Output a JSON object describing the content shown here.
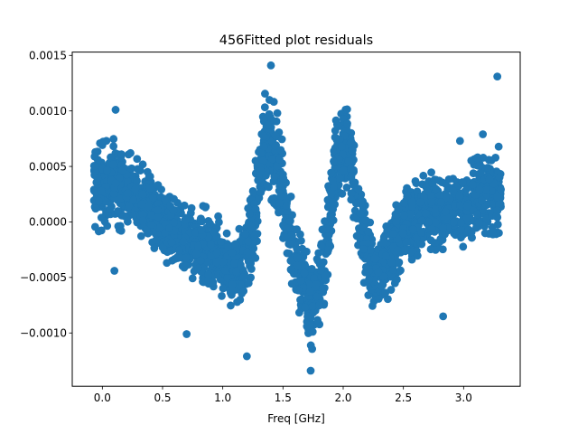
{
  "chart_data": {
    "type": "scatter",
    "title": "456Fitted plot residuals",
    "xlabel": "Freq [GHz]",
    "ylabel": "",
    "xlim": [
      -0.25,
      3.47
    ],
    "ylim": [
      -0.00148,
      0.00153
    ],
    "grid": false,
    "legend": "none",
    "marker_color": "#1f77b4",
    "x_ticks": [
      {
        "value": 0.0,
        "label": "0.0"
      },
      {
        "value": 0.5,
        "label": "0.5"
      },
      {
        "value": 1.0,
        "label": "1.0"
      },
      {
        "value": 1.5,
        "label": "1.5"
      },
      {
        "value": 2.0,
        "label": "2.0"
      },
      {
        "value": 2.5,
        "label": "2.5"
      },
      {
        "value": 3.0,
        "label": "3.0"
      }
    ],
    "y_ticks": [
      {
        "value": -0.001,
        "label": "−0.0010"
      },
      {
        "value": -0.0005,
        "label": "−0.0005"
      },
      {
        "value": 0.0,
        "label": "0.0000"
      },
      {
        "value": 0.0005,
        "label": "0.0005"
      },
      {
        "value": 0.001,
        "label": "0.0010"
      },
      {
        "value": 0.0015,
        "label": "0.0015"
      }
    ],
    "trend": {
      "x": [
        -0.08,
        0.1,
        0.3,
        0.5,
        0.7,
        0.9,
        1.1,
        1.25,
        1.35,
        1.45,
        1.55,
        1.65,
        1.75,
        1.85,
        1.95,
        2.05,
        2.15,
        2.25,
        2.35,
        2.5,
        2.7,
        2.9,
        3.1,
        3.3
      ],
      "y": [
        0.0003,
        0.00035,
        0.0002,
        0.0,
        -0.00015,
        -0.00022,
        -0.00045,
        -5e-05,
        0.0007,
        0.0006,
        -0.0001,
        -0.0005,
        -0.0008,
        -0.0003,
        0.0006,
        0.0007,
        -0.0001,
        -0.00045,
        -0.0004,
        -5e-05,
        0.0001,
        0.0001,
        0.0002,
        0.0003
      ],
      "spread": [
        0.00028,
        0.00028,
        0.00025,
        0.00024,
        0.00024,
        0.00024,
        0.00024,
        0.0003,
        0.00032,
        0.00032,
        0.00028,
        0.00026,
        0.00026,
        0.00028,
        0.00028,
        0.00026,
        0.00026,
        0.00024,
        0.00024,
        0.00024,
        0.00024,
        0.00026,
        0.00026,
        0.00028
      ]
    },
    "x_range_observed": [
      -0.07,
      3.31
    ],
    "notable_points": [
      {
        "x": 1.4,
        "y": 0.00141
      },
      {
        "x": 3.28,
        "y": 0.00131
      },
      {
        "x": 1.73,
        "y": -0.00134
      },
      {
        "x": 0.11,
        "y": 0.00101
      },
      {
        "x": 1.2,
        "y": -0.00121
      },
      {
        "x": 0.7,
        "y": -0.00101
      },
      {
        "x": 2.83,
        "y": -0.00085
      },
      {
        "x": 0.1,
        "y": -0.00044
      },
      {
        "x": 2.97,
        "y": 0.00073
      },
      {
        "x": 3.16,
        "y": 0.00079
      },
      {
        "x": 2.03,
        "y": 0.00031
      }
    ]
  }
}
